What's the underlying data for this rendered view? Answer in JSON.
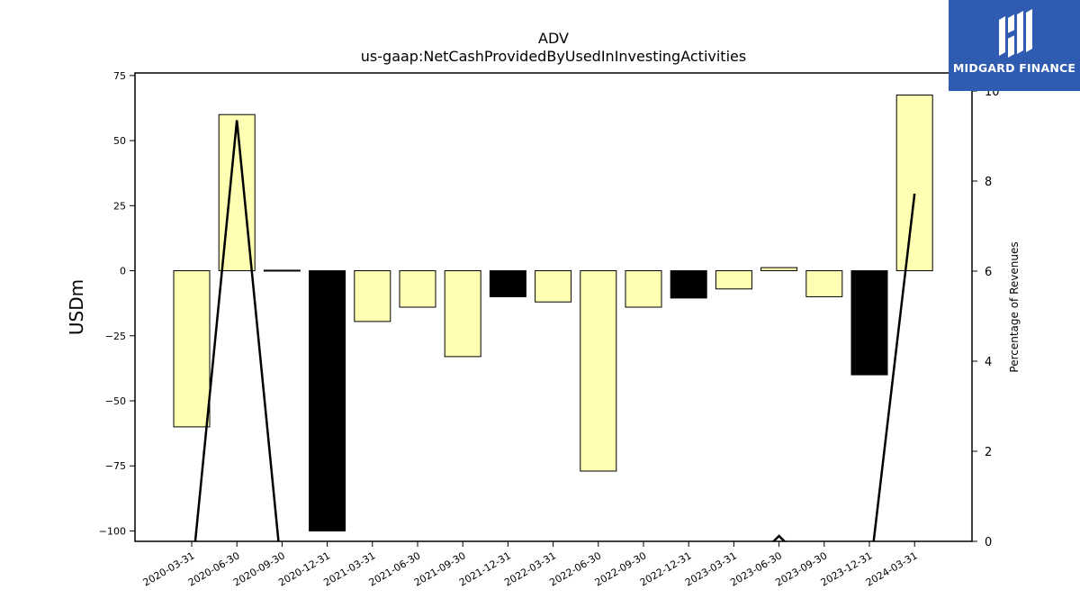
{
  "chart_data": {
    "type": "bar",
    "title": "ADV",
    "subtitle": "us-gaap:NetCashProvidedByUsedInInvestingActivities",
    "ylabel": "USDm",
    "y2label": "Percentage of Revenues",
    "ylim": [
      -104,
      76
    ],
    "y2lim": [
      0,
      10.4
    ],
    "yticks": [
      75,
      50,
      25,
      0,
      -25,
      -50,
      -75,
      -100
    ],
    "y2ticks": [
      0,
      2,
      4,
      6,
      8,
      10
    ],
    "grid": false,
    "categories": [
      "2020-03-31",
      "2020-06-30",
      "2020-09-30",
      "2020-12-31",
      "2021-03-31",
      "2021-06-30",
      "2021-09-30",
      "2021-12-31",
      "2022-03-31",
      "2022-06-30",
      "2022-09-30",
      "2022-12-31",
      "2023-03-31",
      "2023-06-30",
      "2023-09-30",
      "2023-12-31",
      "2024-03-31"
    ],
    "series": [
      {
        "type": "bar",
        "values": [
          -60,
          60,
          0.2,
          -100,
          -19.5,
          -14,
          -33,
          -10,
          -12,
          -77,
          -14,
          -10.5,
          -7,
          1.2,
          -10,
          -40,
          67.5
        ],
        "colors": [
          "#ffffb3",
          "#ffffb3",
          "#000000",
          "#000000",
          "#ffffb3",
          "#ffffb3",
          "#ffffb3",
          "#000000",
          "#ffffb3",
          "#ffffb3",
          "#ffffb3",
          "#000000",
          "#ffffb3",
          "#ffffb3",
          "#ffffb3",
          "#000000",
          "#ffffb3"
        ]
      },
      {
        "type": "line",
        "axis": "right",
        "values": [
          -0.8,
          9.35,
          -0.8,
          null,
          null,
          null,
          null,
          null,
          null,
          null,
          null,
          null,
          null,
          0.12,
          null,
          -0.8,
          7.72
        ]
      }
    ]
  },
  "logo": {
    "text": "MIDGARD FINANCE",
    "background": "#2f5bb1"
  }
}
